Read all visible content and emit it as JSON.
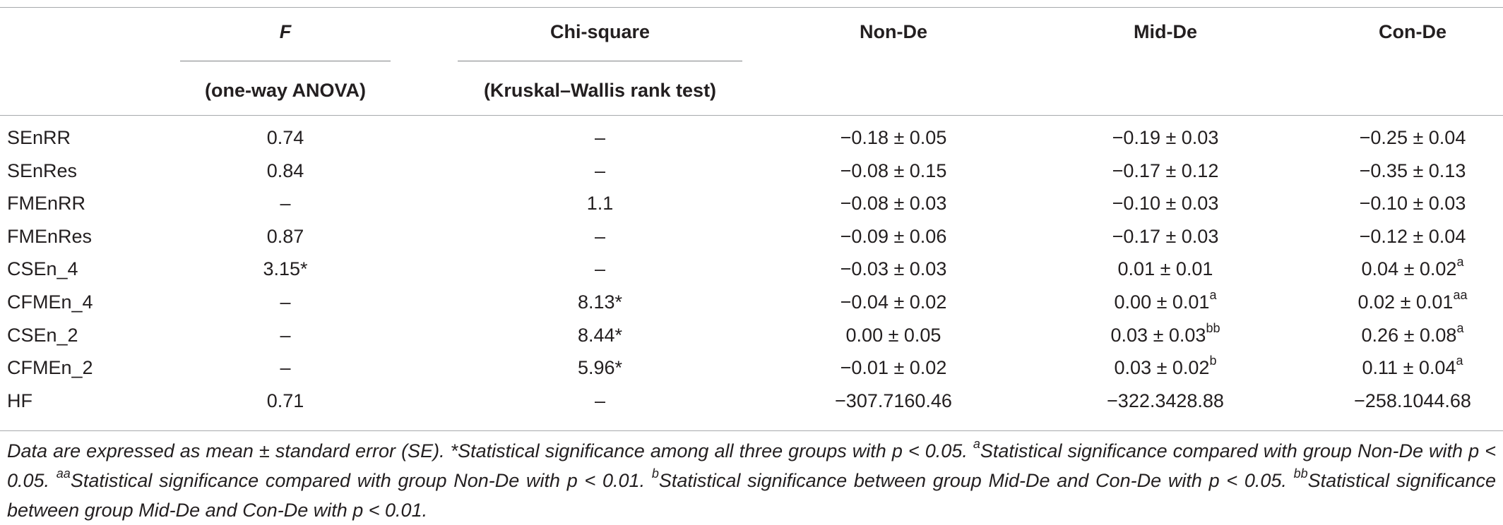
{
  "header": {
    "f_label": "F",
    "f_sub": "(one-way ANOVA)",
    "chi_label": "Chi-square",
    "chi_sub": "(Kruskal–Wallis rank test)",
    "non_de": "Non-De",
    "mid_de": "Mid-De",
    "con_de": "Con-De"
  },
  "rows": [
    {
      "label": "SEnRR",
      "f": "0.74",
      "chi": "–",
      "non": "−0.18 ± 0.05",
      "non_sup": "",
      "mid": "−0.19 ± 0.03",
      "mid_sup": "",
      "con": "−0.25 ± 0.04",
      "con_sup": ""
    },
    {
      "label": "SEnRes",
      "f": "0.84",
      "chi": "–",
      "non": "−0.08 ± 0.15",
      "non_sup": "",
      "mid": "−0.17 ± 0.12",
      "mid_sup": "",
      "con": "−0.35 ± 0.13",
      "con_sup": ""
    },
    {
      "label": "FMEnRR",
      "f": "–",
      "chi": "1.1",
      "non": "−0.08 ± 0.03",
      "non_sup": "",
      "mid": "−0.10 ± 0.03",
      "mid_sup": "",
      "con": "−0.10 ± 0.03",
      "con_sup": ""
    },
    {
      "label": "FMEnRes",
      "f": "0.87",
      "chi": "–",
      "non": "−0.09 ± 0.06",
      "non_sup": "",
      "mid": "−0.17 ± 0.03",
      "mid_sup": "",
      "con": "−0.12 ± 0.04",
      "con_sup": ""
    },
    {
      "label": "CSEn_4",
      "f": "3.15*",
      "chi": "–",
      "non": "−0.03 ± 0.03",
      "non_sup": "",
      "mid": "0.01 ± 0.01",
      "mid_sup": "",
      "con": "0.04 ± 0.02",
      "con_sup": "a"
    },
    {
      "label": "CFMEn_4",
      "f": "–",
      "chi": "8.13*",
      "non": "−0.04 ± 0.02",
      "non_sup": "",
      "mid": "0.00 ± 0.01",
      "mid_sup": "a",
      "con": "0.02 ± 0.01",
      "con_sup": "aa"
    },
    {
      "label": "CSEn_2",
      "f": "–",
      "chi": "8.44*",
      "non": "0.00 ± 0.05",
      "non_sup": "",
      "mid": "0.03 ± 0.03",
      "mid_sup": "bb",
      "con": "0.26 ± 0.08",
      "con_sup": "a"
    },
    {
      "label": "CFMEn_2",
      "f": "–",
      "chi": "5.96*",
      "non": "−0.01 ± 0.02",
      "non_sup": "",
      "mid": "0.03 ± 0.02",
      "mid_sup": "b",
      "con": "0.11 ± 0.04",
      "con_sup": "a"
    },
    {
      "label": "HF",
      "f": "0.71",
      "chi": "–",
      "non": "−307.7160.46",
      "non_sup": "",
      "mid": "−322.3428.88",
      "mid_sup": "",
      "con": "−258.1044.68",
      "con_sup": ""
    }
  ],
  "footnote": {
    "p1": "Data are expressed as mean ± standard error (SE). *Statistical significance among all three groups with p < 0.05. ",
    "s_a": "a",
    "p2": "Statistical significance compared with group Non-De with p < 0.05. ",
    "s_aa": "aa",
    "p3": "Statistical significance compared with group Non-De with p < 0.01. ",
    "s_b": "b",
    "p4": "Statistical significance between group Mid-De and Con-De with p < 0.05. ",
    "s_bb": "bb",
    "p5": "Statistical significance between group Mid-De and Con-De with p < 0.01."
  }
}
